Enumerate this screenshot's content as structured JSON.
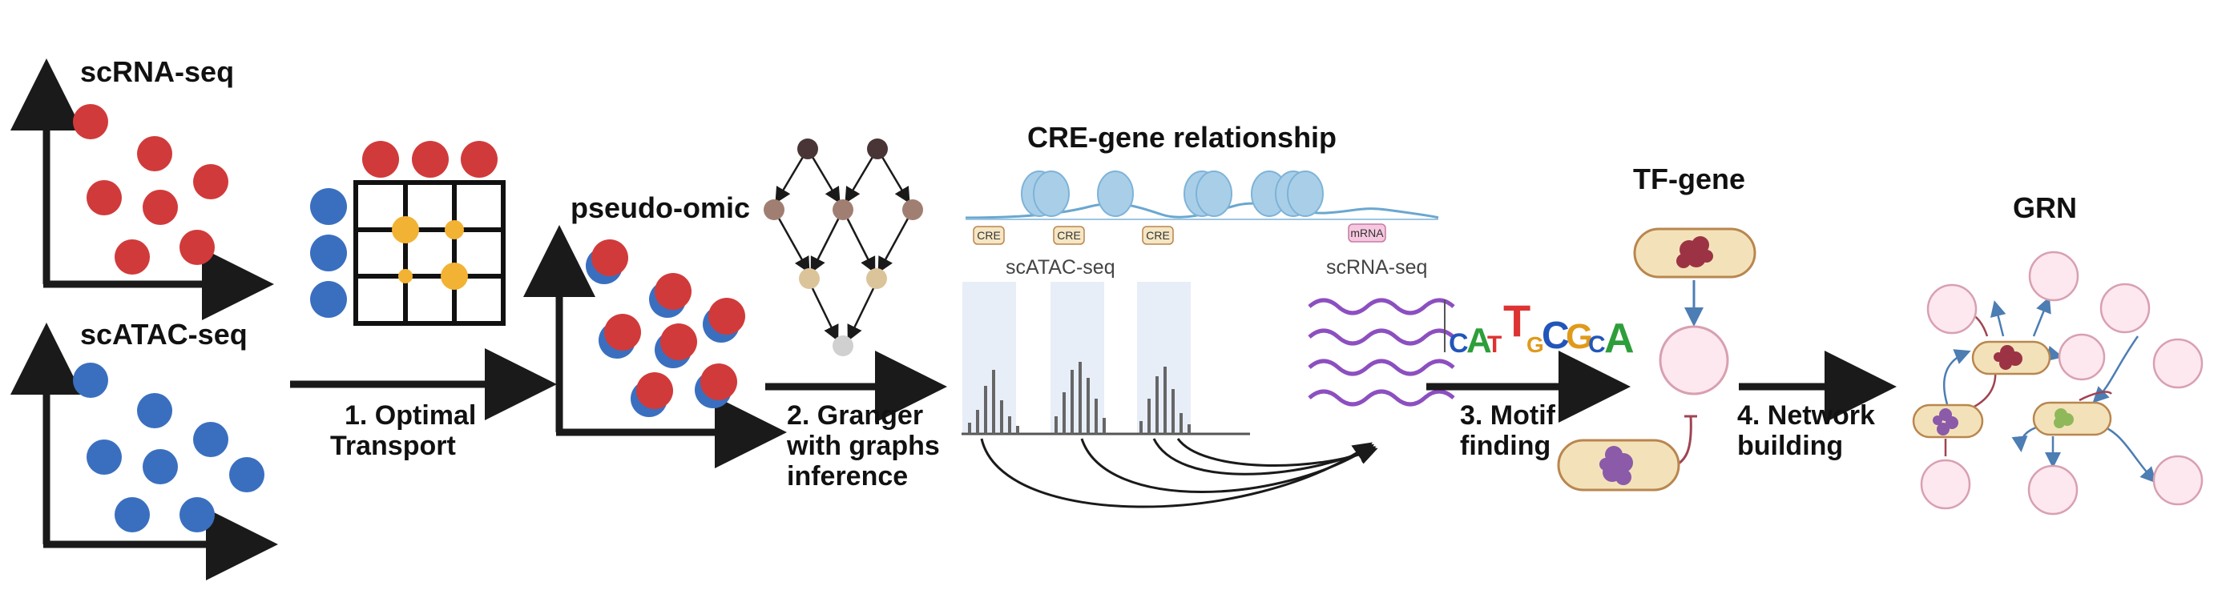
{
  "labels": {
    "scrna": "scRNA-seq",
    "scatac": "scATAC-seq",
    "pseudo_omic": "pseudo-omic",
    "cre_gene": "CRE-gene relationship",
    "scatac_track": "scATAC-seq",
    "scrna_track": "scRNA-seq",
    "tf_gene": "TF-gene",
    "grn": "GRN",
    "cre_tag": "CRE",
    "mrna_tag": "mRNA"
  },
  "steps": [
    {
      "line1": "1. Optimal",
      "line2": "Transport",
      "line3": ""
    },
    {
      "line1": "2. Granger",
      "line2": "with graphs",
      "line3": "inference"
    },
    {
      "line1": "3. Motif",
      "line2": "finding",
      "line3": ""
    },
    {
      "line1": "4. Network",
      "line2": "building",
      "line3": ""
    }
  ],
  "motif": {
    "letters": [
      "C",
      "A",
      "T",
      "T",
      "G",
      "C",
      "G",
      "C",
      "A"
    ]
  },
  "colors": {
    "red_cell": "#d13a3a",
    "blue_cell": "#3a6fbf",
    "gold": "#f2b233",
    "arrow": "#1a1a1a",
    "dag_dark": "#4a3536",
    "dag_mid": "#a07f72",
    "dag_light": "#dcc49a",
    "dag_grey": "#d0d0d0",
    "atac_band": "#e8eef7",
    "wave": "#8c4fc0",
    "nucleosome": "#a9cfe8",
    "tag_fill": "#f5e6c4",
    "mrna_fill": "#f6c8e0",
    "cell_fill": "#f3e2b9",
    "cell_stroke": "#b9864f",
    "node_fill": "#fde8ef",
    "node_stroke": "#d8a0b0",
    "tf_red": "#9c3345",
    "tf_purple": "#8b5aa8",
    "tf_green": "#8fb85a",
    "link_blue": "#4c7db3",
    "link_red": "#a04452"
  }
}
